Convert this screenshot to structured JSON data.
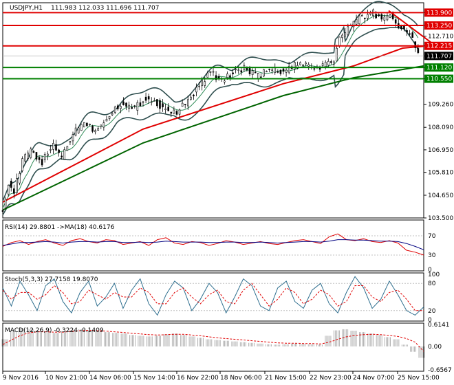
{
  "chart_data": {
    "type": "candlestick",
    "symbol_header": "USDJPY,H1",
    "ohlc_header": "111.983 112.033 111.696 111.707",
    "price_axis": {
      "ylim": [
        103.5,
        114.4
      ],
      "ticks": [
        "113.900",
        "113.250",
        "112.710",
        "112.215",
        "111.707",
        "111.120",
        "110.550",
        "109.260",
        "108.090",
        "106.950",
        "105.810",
        "104.650",
        "103.500"
      ]
    },
    "horizontal_levels": [
      {
        "value": 113.9,
        "label": "113.900",
        "color": "#e00000"
      },
      {
        "value": 113.25,
        "label": "113.250",
        "color": "#e00000"
      },
      {
        "value": 112.215,
        "label": "112.215",
        "color": "#e00000"
      },
      {
        "value": 111.12,
        "label": "111.120",
        "color": "#008000"
      },
      {
        "value": 110.55,
        "label": "110.550",
        "color": "#008000"
      }
    ],
    "current_price": {
      "value": 111.707,
      "label": "111.707"
    },
    "x_axis": {
      "labels": [
        "9 Nov 2016",
        "10 Nov 21:00",
        "14 Nov 06:00",
        "15 Nov 14:00",
        "16 Nov 22:00",
        "18 Nov 06:00",
        "21 Nov 15:00",
        "22 Nov 23:00",
        "24 Nov 07:00",
        "25 Nov 15:00"
      ]
    },
    "price_path": [
      [
        0,
        104.0
      ],
      [
        4,
        105.2
      ],
      [
        8,
        104.8
      ],
      [
        14,
        106.4
      ],
      [
        20,
        106.9
      ],
      [
        28,
        106.3
      ],
      [
        35,
        107.2
      ],
      [
        42,
        106.6
      ],
      [
        50,
        107.8
      ],
      [
        58,
        108.4
      ],
      [
        66,
        107.9
      ],
      [
        75,
        108.7
      ],
      [
        84,
        109.3
      ],
      [
        93,
        109.0
      ],
      [
        102,
        109.6
      ],
      [
        112,
        109.2
      ],
      [
        122,
        108.8
      ],
      [
        132,
        109.4
      ],
      [
        140,
        110.2
      ],
      [
        148,
        110.9
      ],
      [
        156,
        110.4
      ],
      [
        164,
        110.9
      ],
      [
        172,
        111.1
      ],
      [
        180,
        110.7
      ],
      [
        190,
        111.0
      ],
      [
        200,
        110.9
      ],
      [
        210,
        111.3
      ],
      [
        220,
        111.1
      ],
      [
        228,
        111.2
      ],
      [
        236,
        111.5
      ],
      [
        240,
        112.6
      ],
      [
        246,
        113.1
      ],
      [
        252,
        113.5
      ],
      [
        258,
        113.7
      ],
      [
        264,
        113.9
      ],
      [
        270,
        113.6
      ],
      [
        276,
        113.8
      ],
      [
        282,
        113.2
      ],
      [
        288,
        113.0
      ],
      [
        292,
        112.5
      ],
      [
        296,
        111.7
      ]
    ],
    "sma_slow": {
      "color": "#006400",
      "points": [
        [
          0,
          103.9
        ],
        [
          100,
          107.3
        ],
        [
          200,
          109.7
        ],
        [
          250,
          110.6
        ],
        [
          300,
          111.2
        ]
      ]
    },
    "sma_fast": {
      "color": "#e00000",
      "points": [
        [
          0,
          104.3
        ],
        [
          100,
          108.0
        ],
        [
          200,
          110.3
        ],
        [
          250,
          111.2
        ],
        [
          285,
          112.1
        ],
        [
          300,
          112.2
        ]
      ]
    },
    "trendline": {
      "color": "#e00000",
      "points": [
        [
          275,
          114.0
        ],
        [
          305,
          112.4
        ]
      ]
    },
    "rsi": {
      "label": "RSI(14) 29.8801 ->MA(18) 40.6176",
      "ticks": [
        "70",
        "30",
        "0"
      ],
      "ylim": [
        0,
        100
      ],
      "values": [
        48,
        56,
        60,
        52,
        58,
        62,
        55,
        50,
        60,
        64,
        58,
        55,
        62,
        60,
        52,
        55,
        58,
        50,
        62,
        66,
        55,
        52,
        58,
        56,
        50,
        54,
        60,
        57,
        52,
        55,
        58,
        54,
        52,
        56,
        60,
        62,
        58,
        54,
        68,
        74,
        62,
        60,
        64,
        58,
        56,
        60,
        55,
        40,
        36,
        30
      ],
      "ma_values": [
        50,
        53,
        56,
        56,
        57,
        58,
        57,
        55,
        57,
        58,
        58,
        57,
        58,
        58,
        56,
        56,
        57,
        56,
        57,
        59,
        58,
        57,
        57,
        57,
        56,
        56,
        57,
        57,
        56,
        56,
        57,
        56,
        55,
        56,
        57,
        58,
        58,
        57,
        59,
        62,
        62,
        61,
        61,
        60,
        59,
        59,
        58,
        54,
        48,
        41
      ]
    },
    "stoch": {
      "label": "Stoch(5,3,3) 27.7158 19.8070",
      "ticks": [
        "100",
        "80",
        "20",
        "0"
      ],
      "ylim": [
        0,
        100
      ],
      "values": [
        70,
        30,
        85,
        55,
        20,
        75,
        90,
        40,
        15,
        60,
        85,
        30,
        50,
        80,
        25,
        65,
        90,
        35,
        10,
        55,
        85,
        70,
        20,
        45,
        80,
        60,
        15,
        50,
        90,
        75,
        30,
        20,
        70,
        85,
        40,
        25,
        65,
        80,
        35,
        15,
        60,
        95,
        70,
        25,
        45,
        85,
        55,
        20,
        10,
        28
      ],
      "signal": [
        65,
        45,
        60,
        60,
        45,
        55,
        75,
        60,
        35,
        40,
        65,
        55,
        45,
        60,
        50,
        50,
        70,
        60,
        35,
        35,
        60,
        70,
        50,
        35,
        55,
        65,
        40,
        35,
        65,
        80,
        55,
        30,
        45,
        70,
        60,
        35,
        45,
        65,
        55,
        30,
        40,
        75,
        75,
        50,
        40,
        60,
        65,
        45,
        20,
        20
      ]
    },
    "macd": {
      "label": "MACD(12,26,9) -0.3224 -0.1409",
      "ticks": [
        "0.6141",
        "0.00",
        "-0.6567"
      ],
      "ylim": [
        -0.6567,
        0.6141
      ],
      "histogram": [
        0.2,
        0.42,
        0.5,
        0.48,
        0.44,
        0.4,
        0.38,
        0.42,
        0.46,
        0.48,
        0.46,
        0.42,
        0.4,
        0.38,
        0.36,
        0.32,
        0.3,
        0.28,
        0.3,
        0.34,
        0.36,
        0.32,
        0.28,
        0.24,
        0.2,
        0.18,
        0.16,
        0.14,
        0.12,
        0.1,
        0.08,
        0.06,
        0.05,
        0.06,
        0.08,
        0.07,
        0.06,
        0.05,
        0.3,
        0.45,
        0.48,
        0.44,
        0.4,
        0.36,
        0.32,
        0.26,
        0.2,
        0.05,
        -0.15,
        -0.32
      ],
      "signal": [
        0.05,
        0.18,
        0.3,
        0.38,
        0.41,
        0.41,
        0.4,
        0.4,
        0.42,
        0.44,
        0.45,
        0.44,
        0.43,
        0.41,
        0.39,
        0.37,
        0.35,
        0.33,
        0.32,
        0.33,
        0.34,
        0.34,
        0.32,
        0.3,
        0.27,
        0.24,
        0.22,
        0.2,
        0.18,
        0.16,
        0.14,
        0.12,
        0.1,
        0.09,
        0.09,
        0.08,
        0.08,
        0.07,
        0.12,
        0.2,
        0.27,
        0.31,
        0.33,
        0.34,
        0.33,
        0.31,
        0.28,
        0.22,
        0.12,
        -0.14
      ]
    }
  }
}
